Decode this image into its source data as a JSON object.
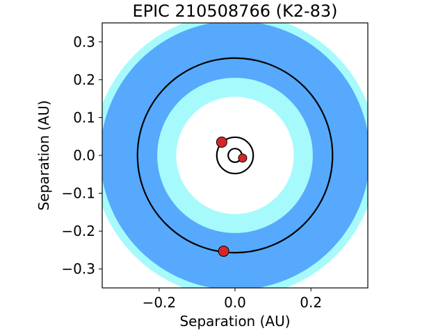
{
  "chart_data": {
    "type": "scatter",
    "title": "EPIC 210508766 (K2-83)",
    "xlabel": "Separation (AU)",
    "ylabel": "Separation (AU)",
    "xlim": [
      -0.35,
      0.35
    ],
    "ylim": [
      -0.35,
      0.35
    ],
    "xticks": [
      -0.2,
      0.0,
      0.2
    ],
    "xtick_labels": [
      "−0.2",
      "0.0",
      "0.2"
    ],
    "yticks": [
      -0.3,
      -0.2,
      -0.1,
      0.0,
      0.1,
      0.2,
      0.3
    ],
    "ytick_labels": [
      "−0.3",
      "−0.2",
      "−0.1",
      "0.0",
      "0.1",
      "0.2",
      "0.3"
    ],
    "grid": false,
    "habitable_zone": {
      "conservative_inner_au": 0.155,
      "conservative_outer_au": 0.355,
      "optimistic_inner_au": 0.205,
      "optimistic_outer_au": 0.375,
      "conservative_color": "#56a9fc",
      "optimistic_color": "#a6fafc"
    },
    "orbits": [
      {
        "radius_au": 0.018,
        "planet_x": 0.02,
        "planet_y": -0.007
      },
      {
        "radius_au": 0.048,
        "planet_x": -0.035,
        "planet_y": 0.035
      },
      {
        "radius_au": 0.257,
        "planet_x": -0.03,
        "planet_y": -0.253
      }
    ],
    "orbit_color": "#000000",
    "planet_color": "#d62728"
  }
}
